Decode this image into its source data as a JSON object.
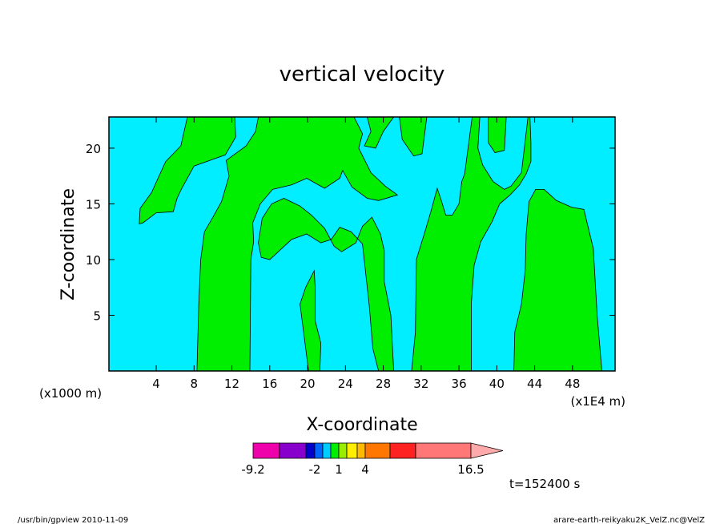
{
  "chart_data": {
    "type": "heatmap",
    "title": "vertical velocity",
    "xlabel": "X-coordinate",
    "ylabel": "Z-coordinate",
    "x_unit_left": "(x1000 m)",
    "x_unit_right": "(x1E4 m)",
    "xlim": [
      -1,
      52.5
    ],
    "ylim": [
      0,
      22.8
    ],
    "x_ticks": [
      4,
      8,
      12,
      16,
      20,
      24,
      28,
      32,
      36,
      40,
      44,
      48
    ],
    "y_ticks": [
      5,
      10,
      15,
      20
    ],
    "background_color": "#00eeff",
    "region_color": "#00ee00",
    "regions": [
      {
        "points": [
          [
            2.2,
            13.2
          ],
          [
            2.3,
            14.6
          ],
          [
            3.5,
            16.0
          ],
          [
            4.3,
            17.5
          ],
          [
            5.0,
            18.8
          ],
          [
            6.6,
            20.2
          ],
          [
            7.3,
            22.8
          ],
          [
            12.3,
            22.8
          ],
          [
            12.4,
            21.0
          ],
          [
            11.3,
            19.4
          ],
          [
            8.0,
            18.4
          ],
          [
            6.7,
            16.4
          ],
          [
            6.2,
            15.5
          ],
          [
            5.8,
            14.3
          ],
          [
            4.0,
            14.2
          ],
          [
            2.6,
            13.3
          ]
        ]
      },
      {
        "points": [
          [
            8.3,
            0
          ],
          [
            8.5,
            6.0
          ],
          [
            8.7,
            10.0
          ],
          [
            9.1,
            12.5
          ],
          [
            10.0,
            13.8
          ],
          [
            10.9,
            15.2
          ],
          [
            11.7,
            17.5
          ],
          [
            11.4,
            18.9
          ],
          [
            13.5,
            20.2
          ],
          [
            14.5,
            21.5
          ],
          [
            14.8,
            22.8
          ],
          [
            17.5,
            22.8
          ],
          [
            20.0,
            22.8
          ],
          [
            24.0,
            22.8
          ],
          [
            24.9,
            22.8
          ],
          [
            25.8,
            21.3
          ],
          [
            25.4,
            20.0
          ],
          [
            26.7,
            17.8
          ],
          [
            28.2,
            16.6
          ],
          [
            29.5,
            15.8
          ],
          [
            27.5,
            15.3
          ],
          [
            26.3,
            15.5
          ],
          [
            24.7,
            16.5
          ],
          [
            23.7,
            18.0
          ],
          [
            23.4,
            17.3
          ],
          [
            21.8,
            16.4
          ],
          [
            19.9,
            17.3
          ],
          [
            18.3,
            16.7
          ],
          [
            16.3,
            16.3
          ],
          [
            15.0,
            15.0
          ],
          [
            14.2,
            13.3
          ],
          [
            14.3,
            11.6
          ],
          [
            14.0,
            10.0
          ],
          [
            13.9,
            0
          ]
        ]
      },
      {
        "points": [
          [
            14.8,
            11.5
          ],
          [
            15.2,
            13.7
          ],
          [
            16.2,
            15.0
          ],
          [
            17.5,
            15.5
          ],
          [
            19.2,
            14.8
          ],
          [
            20.4,
            14.0
          ],
          [
            21.8,
            12.8
          ],
          [
            22.8,
            11.2
          ],
          [
            23.6,
            10.7
          ],
          [
            25.1,
            11.5
          ],
          [
            25.8,
            13.0
          ],
          [
            26.8,
            13.8
          ],
          [
            27.7,
            12.3
          ],
          [
            28.1,
            10.8
          ],
          [
            28.1,
            8.0
          ],
          [
            28.8,
            5.0
          ],
          [
            29.1,
            0
          ],
          [
            27.5,
            0
          ],
          [
            26.9,
            2.0
          ],
          [
            26.5,
            6.0
          ],
          [
            25.8,
            11.4
          ],
          [
            24.6,
            12.5
          ],
          [
            23.4,
            12.9
          ],
          [
            22.5,
            11.8
          ],
          [
            21.4,
            11.5
          ],
          [
            19.9,
            12.3
          ],
          [
            18.3,
            11.8
          ],
          [
            16.0,
            10.0
          ],
          [
            15.1,
            10.2
          ]
        ]
      },
      {
        "points": [
          [
            20.1,
            0
          ],
          [
            19.5,
            4.0
          ],
          [
            19.2,
            6.0
          ],
          [
            19.8,
            7.5
          ],
          [
            20.7,
            9.0
          ],
          [
            20.8,
            7.5
          ],
          [
            20.8,
            4.5
          ],
          [
            21.4,
            2.5
          ],
          [
            21.3,
            0
          ]
        ]
      },
      {
        "points": [
          [
            26.3,
            22.8
          ],
          [
            26.7,
            21.5
          ],
          [
            26.0,
            20.2
          ],
          [
            27.2,
            20.0
          ],
          [
            28.0,
            21.5
          ],
          [
            29.1,
            22.8
          ]
        ]
      },
      {
        "points": [
          [
            29.7,
            22.8
          ],
          [
            30.0,
            20.8
          ],
          [
            31.2,
            19.3
          ],
          [
            32.1,
            19.5
          ],
          [
            32.6,
            22.8
          ]
        ]
      },
      {
        "points": [
          [
            31.0,
            0
          ],
          [
            31.4,
            3.5
          ],
          [
            31.5,
            10.0
          ],
          [
            32.4,
            12.5
          ],
          [
            33.1,
            14.5
          ],
          [
            33.7,
            16.4
          ],
          [
            34.1,
            15.4
          ],
          [
            34.6,
            14.0
          ],
          [
            35.3,
            14.0
          ],
          [
            36.0,
            15.0
          ],
          [
            36.3,
            17.0
          ],
          [
            36.6,
            17.7
          ],
          [
            37.4,
            22.8
          ],
          [
            38.2,
            22.8
          ],
          [
            38.0,
            20.0
          ],
          [
            38.5,
            18.5
          ],
          [
            39.6,
            17.0
          ],
          [
            40.8,
            16.3
          ],
          [
            41.5,
            16.6
          ],
          [
            42.6,
            17.8
          ],
          [
            43.3,
            22.8
          ],
          [
            39.3,
            22.8
          ],
          [
            39.1,
            22.8
          ],
          [
            39.1,
            20.5
          ],
          [
            39.8,
            19.6
          ],
          [
            40.8,
            19.8
          ],
          [
            41.0,
            22.8
          ],
          [
            43.5,
            22.8
          ],
          [
            43.6,
            20.5
          ],
          [
            43.6,
            18.8
          ],
          [
            43.1,
            17.7
          ],
          [
            42.4,
            16.7
          ],
          [
            41.4,
            15.8
          ],
          [
            40.3,
            15.0
          ],
          [
            39.5,
            13.4
          ],
          [
            38.3,
            11.6
          ],
          [
            37.6,
            9.5
          ],
          [
            37.3,
            6.0
          ],
          [
            37.3,
            0
          ]
        ]
      },
      {
        "points": [
          [
            41.8,
            0
          ],
          [
            41.9,
            3.5
          ],
          [
            42.6,
            6.0
          ],
          [
            43.0,
            9.0
          ],
          [
            43.1,
            12.3
          ],
          [
            43.4,
            15.2
          ],
          [
            44.1,
            16.3
          ],
          [
            45.0,
            16.3
          ],
          [
            46.3,
            15.3
          ],
          [
            47.9,
            14.7
          ],
          [
            49.2,
            14.5
          ],
          [
            50.2,
            11.0
          ],
          [
            50.6,
            5.0
          ],
          [
            51.1,
            0
          ]
        ]
      }
    ],
    "colorbar": {
      "colors": [
        "#ee00aa",
        "#8800cc",
        "#0000cc",
        "#0066ff",
        "#00ccff",
        "#00ee00",
        "#99ee00",
        "#ffee00",
        "#ffbb00",
        "#ff7700",
        "#ff2222",
        "#ff7777",
        "#ffaaaa"
      ],
      "labels": [
        "-9.2",
        "-2",
        "1",
        "4",
        "16.5"
      ]
    },
    "time_label": "t=152400 s"
  },
  "footer": {
    "left": "/usr/bin/gpview   2010-11-09",
    "right": "arare-earth-reikyaku2K_VelZ.nc@VelZ"
  }
}
